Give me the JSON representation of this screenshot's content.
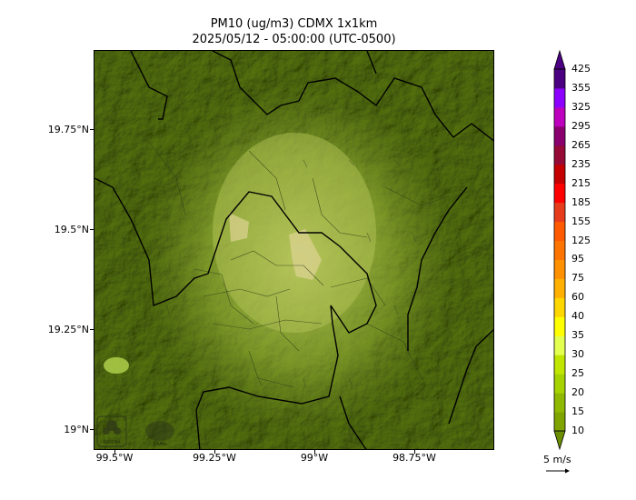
{
  "title_line1": "PM10 (ug/m3) CDMX 1x1km",
  "title_line2": "2025/05/12 - 05:00:00 (UTC-0500)",
  "lat_labels": [
    "19.75°N",
    "19.5°N",
    "19.25°N",
    "19°N"
  ],
  "lon_labels": [
    "99.5°W",
    "99.25°W",
    "99°W",
    "98.75°W"
  ],
  "colorbar": {
    "levels": [
      10,
      15,
      20,
      25,
      30,
      35,
      40,
      60,
      75,
      95,
      125,
      155,
      185,
      215,
      235,
      265,
      295,
      325,
      355,
      425
    ],
    "labels": [
      "10",
      "15",
      "20",
      "25",
      "30",
      "35",
      "40",
      "60",
      "75",
      "95",
      "125",
      "155",
      "185",
      "215",
      "235",
      "265",
      "295",
      "325",
      "355",
      "425"
    ],
    "colors": [
      "#6b8e00",
      "#7fa400",
      "#8fb800",
      "#a6d200",
      "#c0e600",
      "#e3ff4f",
      "#ffff00",
      "#ffd700",
      "#ffb000",
      "#ff9000",
      "#ff7400",
      "#ff5a00",
      "#e63c1c",
      "#ff0000",
      "#c40000",
      "#960a38",
      "#8a006e",
      "#bd00bd",
      "#8c00ff",
      "#4b0082"
    ]
  },
  "wind_key": "5 m/s",
  "logos": [
    "SEDEMA",
    "CAMe"
  ],
  "colors": {
    "terrain_dark": "#58701c",
    "terrain_light": "#8fa83a",
    "plume": "#b7c75a",
    "hotspot": "#d6d08a",
    "boundary": "#000000"
  }
}
